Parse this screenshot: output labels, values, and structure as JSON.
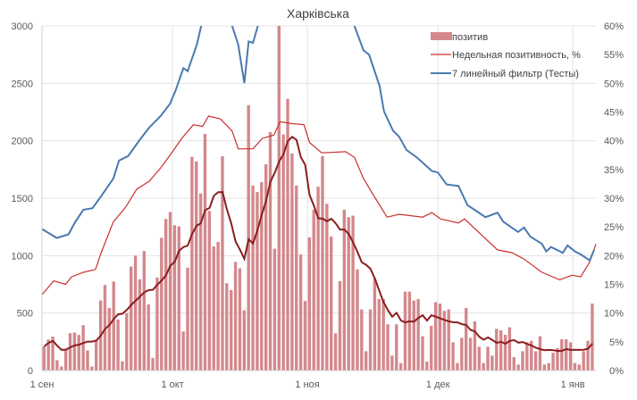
{
  "chart_data": {
    "type": "bar+line",
    "title": "Харківська",
    "xlabel": "",
    "ylabel": "",
    "ylim": [
      0,
      3000
    ],
    "y2lim": [
      0,
      60
    ],
    "grid": true,
    "legend_position": "top-right",
    "x_ticks": [
      {
        "day": 0,
        "label": "1 сен"
      },
      {
        "day": 30,
        "label": "1 окт"
      },
      {
        "day": 61,
        "label": "1 ноя"
      },
      {
        "day": 91,
        "label": "1 дек"
      },
      {
        "day": 122,
        "label": "1 янв"
      }
    ],
    "y_ticks": [
      "0",
      "500",
      "1000",
      "1500",
      "2000",
      "2500",
      "3000"
    ],
    "y_tick_values": [
      0,
      500,
      1000,
      1500,
      2000,
      2500,
      3000
    ],
    "y2_ticks": [
      "0%",
      "5%",
      "10%",
      "15%",
      "20%",
      "25%",
      "30%",
      "35%",
      "40%",
      "45%",
      "50%",
      "55%",
      "60%"
    ],
    "y2_tick_values": [
      0,
      5,
      10,
      15,
      20,
      25,
      30,
      35,
      40,
      45,
      50,
      55,
      60
    ],
    "legend": [
      "позитив",
      "Недельная позитивность, %",
      "7 линейный фильтр (Тесты)"
    ],
    "colors": {
      "bars": "#d4888c",
      "positivity": "#c9302c",
      "tests": "#4a79b0",
      "avg": "#8b1e1e",
      "grid": "#e3e3e3"
    },
    "series": [
      {
        "name": "позитив",
        "kind": "bar",
        "axis": "left",
        "values": [
          210,
          270,
          295,
          90,
          35,
          190,
          325,
          330,
          310,
          395,
          175,
          35,
          265,
          610,
          745,
          545,
          775,
          445,
          80,
          500,
          905,
          1000,
          795,
          1040,
          575,
          110,
          810,
          1155,
          1320,
          1380,
          1265,
          1255,
          340,
          895,
          1860,
          1820,
          1540,
          2060,
          1390,
          1080,
          1120,
          1865,
          760,
          700,
          945,
          890,
          525,
          2310,
          1610,
          1555,
          1640,
          1795,
          2075,
          1060,
          3000,
          2055,
          2365,
          1890,
          1610,
          1010,
          605,
          1160,
          1400,
          1600,
          1867,
          1452,
          1167,
          324,
          778,
          1400,
          1335,
          1348,
          882,
          532,
          168,
          532,
          804,
          622,
          622,
          402,
          130,
          402,
          65,
          687,
          687,
          609,
          622,
          298,
          78,
          389,
          596,
          583,
          519,
          532,
          246,
          65,
          285,
          544,
          285,
          428,
          207,
          65,
          207,
          130,
          363,
          350,
          311,
          376,
          117,
          52,
          168,
          246,
          259,
          168,
          298,
          52,
          65,
          155,
          194,
          272,
          272,
          246,
          65,
          52,
          168,
          259,
          583
        ]
      },
      {
        "name": "Недельная позитивность, %",
        "kind": "line",
        "axis": "right",
        "points": [
          [
            0,
            13.2
          ],
          [
            2.7,
            15.6
          ],
          [
            5.4,
            15.0
          ],
          [
            6.8,
            16.3
          ],
          [
            9.5,
            17.1
          ],
          [
            12.3,
            17.6
          ],
          [
            13.6,
            20.5
          ],
          [
            16.4,
            25.9
          ],
          [
            19.1,
            28.3
          ],
          [
            21.8,
            31.6
          ],
          [
            24.6,
            32.9
          ],
          [
            27.3,
            35.3
          ],
          [
            30,
            38.1
          ],
          [
            32.1,
            40.4
          ],
          [
            34.8,
            42.8
          ],
          [
            36.9,
            42.5
          ],
          [
            38.3,
            44.3
          ],
          [
            41,
            43.8
          ],
          [
            43.7,
            41.7
          ],
          [
            45.1,
            38.6
          ],
          [
            46.5,
            38.6
          ],
          [
            48.5,
            38.6
          ],
          [
            50.6,
            40.4
          ],
          [
            53.3,
            41.0
          ],
          [
            54.7,
            43.3
          ],
          [
            57.4,
            43.0
          ],
          [
            60.2,
            42.8
          ],
          [
            61.5,
            39.7
          ],
          [
            64.3,
            37.9
          ],
          [
            69.8,
            38.1
          ],
          [
            71.8,
            37.1
          ],
          [
            73.9,
            33.4
          ],
          [
            75.9,
            30.9
          ],
          [
            79.3,
            26.7
          ],
          [
            82.1,
            27.2
          ],
          [
            87.5,
            26.7
          ],
          [
            89.6,
            27.5
          ],
          [
            91.6,
            26.4
          ],
          [
            95.7,
            25.7
          ],
          [
            97.1,
            26.4
          ],
          [
            100.6,
            23.9
          ],
          [
            104.7,
            21.0
          ],
          [
            108.1,
            20.5
          ],
          [
            110.8,
            19.4
          ],
          [
            114.9,
            17.1
          ],
          [
            119,
            15.8
          ],
          [
            121.8,
            16.6
          ],
          [
            123.8,
            16.3
          ],
          [
            125.9,
            18.9
          ],
          [
            127.3,
            22.0
          ]
        ]
      },
      {
        "name": "7 линейный фильтр (Тесты)",
        "kind": "line",
        "axis": "left",
        "points": [
          [
            0,
            1232
          ],
          [
            3.4,
            1154
          ],
          [
            6.1,
            1185
          ],
          [
            7.5,
            1284
          ],
          [
            9.5,
            1400
          ],
          [
            11.6,
            1413
          ],
          [
            13.6,
            1517
          ],
          [
            16.4,
            1672
          ],
          [
            17.7,
            1828
          ],
          [
            19.8,
            1867
          ],
          [
            22.5,
            2010
          ],
          [
            24.6,
            2113
          ],
          [
            27.3,
            2217
          ],
          [
            29.4,
            2321
          ],
          [
            30.7,
            2437
          ],
          [
            32.5,
            2632
          ],
          [
            33.5,
            2606
          ],
          [
            35.6,
            2839
          ],
          [
            36.6,
            3000
          ],
          [
            40,
            3500
          ],
          [
            43.7,
            3000
          ],
          [
            45.1,
            2839
          ],
          [
            46.5,
            2502
          ],
          [
            47.5,
            2865
          ],
          [
            48.5,
            2852
          ],
          [
            49.6,
            3000
          ],
          [
            60,
            4200
          ],
          [
            71.8,
            3000
          ],
          [
            73.9,
            2787
          ],
          [
            75.2,
            2748
          ],
          [
            77.6,
            2476
          ],
          [
            78.6,
            2256
          ],
          [
            80.7,
            2087
          ],
          [
            82.1,
            2035
          ],
          [
            83.8,
            1919
          ],
          [
            86.2,
            1854
          ],
          [
            89.6,
            1737
          ],
          [
            91,
            1724
          ],
          [
            93,
            1620
          ],
          [
            95.7,
            1607
          ],
          [
            97.8,
            1439
          ],
          [
            99.9,
            1387
          ],
          [
            101.9,
            1335
          ],
          [
            104.7,
            1374
          ],
          [
            106,
            1296
          ],
          [
            109.4,
            1206
          ],
          [
            110.8,
            1245
          ],
          [
            112.2,
            1167
          ],
          [
            114.9,
            1102
          ],
          [
            115.9,
            1037
          ],
          [
            117,
            1076
          ],
          [
            119.7,
            1024
          ],
          [
            120.8,
            1089
          ],
          [
            122.5,
            1037
          ],
          [
            123.8,
            1011
          ],
          [
            125.9,
            959
          ],
          [
            126.9,
            1050
          ]
        ]
      }
    ]
  }
}
